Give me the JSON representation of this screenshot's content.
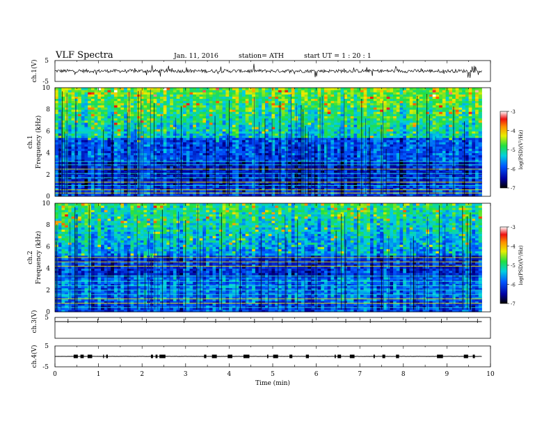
{
  "header": {
    "title": "VLF  Spectra",
    "date": "Jan. 11, 2016",
    "station": "station= ATH",
    "start": "start  UT  =   1  : 20 : 1"
  },
  "chart_data": [
    {
      "type": "line",
      "panel": "ch1-waveform",
      "ylabel": "ch.1(V)",
      "ylim": [
        -5,
        5
      ],
      "yticks": [
        "5",
        "-5"
      ],
      "description_values": "baseline near 0 V with frequent short spikes",
      "x": [
        0,
        9.8
      ],
      "baseline": 0
    },
    {
      "type": "heatmap",
      "panel": "ch1-spectrogram",
      "ylabel": "ch.1\nFrequency  (kHz)",
      "xlim": [
        0,
        9.8
      ],
      "ylim": [
        0,
        10
      ],
      "yticks": [
        "0",
        "2",
        "4",
        "6",
        "8",
        "10"
      ],
      "colorbar": {
        "label": "log(PSD)(V²/Hz)",
        "range": [
          -7,
          -3
        ],
        "ticks": [
          "-3",
          "-4",
          "-5",
          "-6",
          "-7"
        ]
      },
      "bands_khz": [
        0.3,
        0.6,
        1.0,
        1.3,
        1.7,
        2.1,
        2.5,
        2.9,
        3.2
      ]
    },
    {
      "type": "heatmap",
      "panel": "ch2-spectrogram",
      "ylabel": "ch.2\nFrequency  (kHz)",
      "xlim": [
        0,
        9.8
      ],
      "ylim": [
        0,
        10
      ],
      "yticks": [
        "0",
        "2",
        "4",
        "6",
        "8",
        "10"
      ],
      "colorbar": {
        "label": "log(PSD)(V²/Hz)",
        "range": [
          -7,
          -3
        ],
        "ticks": [
          "-3",
          "-4",
          "-5",
          "-6",
          "-7"
        ]
      },
      "bands_khz": [
        0.4,
        0.8,
        1.2,
        1.6,
        2.0,
        2.4,
        2.8,
        3.3,
        4.2,
        4.6,
        5.0
      ]
    },
    {
      "type": "line",
      "panel": "ch3-waveform",
      "ylabel": "ch.3(V)",
      "ylim": [
        -5,
        5
      ],
      "yticks": [
        "5"
      ],
      "x": [
        0,
        9.8
      ],
      "baseline": 0
    },
    {
      "type": "line",
      "panel": "ch4-waveform",
      "ylabel": "ch.4(V)",
      "ylim": [
        -5,
        5
      ],
      "yticks": [
        "5",
        "-5"
      ],
      "x": [
        0,
        9.8
      ],
      "baseline": 0
    }
  ],
  "x_axis": {
    "label": "Time  (min)",
    "range": [
      0,
      10
    ],
    "ticks": [
      "0",
      "1",
      "2",
      "3",
      "4",
      "5",
      "6",
      "7",
      "8",
      "9",
      "10"
    ]
  }
}
